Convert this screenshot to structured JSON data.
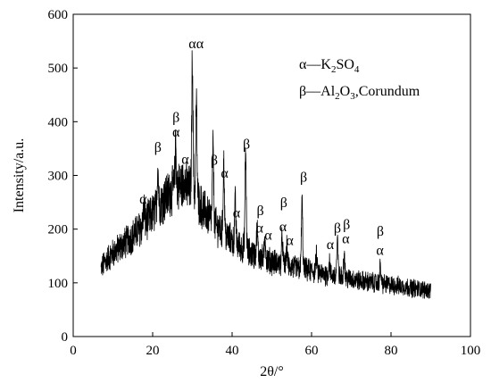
{
  "chart_data": {
    "type": "line",
    "xlabel": "2θ/°",
    "ylabel": "Intensity/a.u.",
    "xlim": [
      0,
      100
    ],
    "ylim": [
      0,
      600
    ],
    "x_ticks": [
      0,
      20,
      40,
      60,
      80,
      100
    ],
    "y_ticks": [
      0,
      100,
      200,
      300,
      400,
      500,
      600
    ],
    "grid": false,
    "legend_position": "top-right",
    "legend": [
      {
        "symbol": "α",
        "sep": "–",
        "parts": [
          [
            "K",
            "n"
          ],
          [
            "2",
            "sub"
          ],
          [
            "SO",
            "n"
          ],
          [
            "4",
            "sub"
          ]
        ]
      },
      {
        "symbol": "β",
        "sep": "–",
        "parts": [
          [
            "Al",
            "n"
          ],
          [
            "2",
            "sub"
          ],
          [
            "O",
            "n"
          ],
          [
            "3",
            "sub"
          ],
          [
            ",Corundum",
            "n"
          ]
        ]
      }
    ],
    "series": [
      {
        "x": [
          7,
          8,
          10,
          12,
          14,
          16,
          18,
          20,
          22,
          24,
          26,
          28,
          30,
          32,
          34,
          36,
          38,
          40,
          42,
          44,
          46,
          48,
          50,
          52,
          54,
          56,
          58,
          60,
          62,
          64,
          66,
          68,
          70,
          72,
          74,
          76,
          78,
          80,
          82,
          84,
          86,
          88,
          90
        ],
        "y": [
          125,
          140,
          155,
          168,
          180,
          195,
          210,
          228,
          248,
          265,
          280,
          282,
          270,
          245,
          225,
          205,
          190,
          178,
          168,
          158,
          150,
          145,
          140,
          135,
          131,
          128,
          125,
          122,
          118,
          115,
          112,
          110,
          107,
          104,
          102,
          100,
          98,
          96,
          94,
          92,
          90,
          88,
          86
        ],
        "peaks": [
          {
            "x": 17.8,
            "y": 240
          },
          {
            "x": 21.3,
            "y": 320
          },
          {
            "x": 25.8,
            "y": 350
          },
          {
            "x": 28.0,
            "y": 300
          },
          {
            "x": 30.0,
            "y": 520
          },
          {
            "x": 31.0,
            "y": 435
          },
          {
            "x": 35.2,
            "y": 350
          },
          {
            "x": 37.9,
            "y": 325
          },
          {
            "x": 40.8,
            "y": 250
          },
          {
            "x": 43.4,
            "y": 345
          },
          {
            "x": 46.3,
            "y": 200
          },
          {
            "x": 48.3,
            "y": 185
          },
          {
            "x": 52.6,
            "y": 185
          },
          {
            "x": 53.8,
            "y": 165
          },
          {
            "x": 57.6,
            "y": 252
          },
          {
            "x": 61.2,
            "y": 150
          },
          {
            "x": 64.5,
            "y": 140
          },
          {
            "x": 66.5,
            "y": 178
          },
          {
            "x": 68.2,
            "y": 155
          },
          {
            "x": 77.3,
            "y": 130
          }
        ]
      }
    ],
    "annotations": [
      {
        "text": "α",
        "x": 17.6,
        "y": 248
      },
      {
        "text": "β",
        "x": 21.3,
        "y": 344
      },
      {
        "text": "β",
        "x": 25.9,
        "y": 400
      },
      {
        "text": "α",
        "x": 25.9,
        "y": 372
      },
      {
        "text": "α",
        "x": 28.2,
        "y": 322
      },
      {
        "text": "α",
        "x": 30.0,
        "y": 537
      },
      {
        "text": "α",
        "x": 31.9,
        "y": 537
      },
      {
        "text": "β",
        "x": 35.5,
        "y": 320
      },
      {
        "text": "α",
        "x": 38.1,
        "y": 296
      },
      {
        "text": "α",
        "x": 41.1,
        "y": 222
      },
      {
        "text": "β",
        "x": 43.6,
        "y": 350
      },
      {
        "text": "β",
        "x": 47.1,
        "y": 226
      },
      {
        "text": "α",
        "x": 46.9,
        "y": 194
      },
      {
        "text": "α",
        "x": 49.1,
        "y": 180
      },
      {
        "text": "β",
        "x": 53.0,
        "y": 241
      },
      {
        "text": "α",
        "x": 52.8,
        "y": 196
      },
      {
        "text": "α",
        "x": 54.5,
        "y": 170
      },
      {
        "text": "β",
        "x": 58.0,
        "y": 288
      },
      {
        "text": "α",
        "x": 64.7,
        "y": 163
      },
      {
        "text": "β",
        "x": 66.5,
        "y": 194
      },
      {
        "text": "β",
        "x": 68.8,
        "y": 200
      },
      {
        "text": "α",
        "x": 68.6,
        "y": 174
      },
      {
        "text": "β",
        "x": 77.3,
        "y": 188
      },
      {
        "text": "α",
        "x": 77.2,
        "y": 152
      }
    ]
  }
}
